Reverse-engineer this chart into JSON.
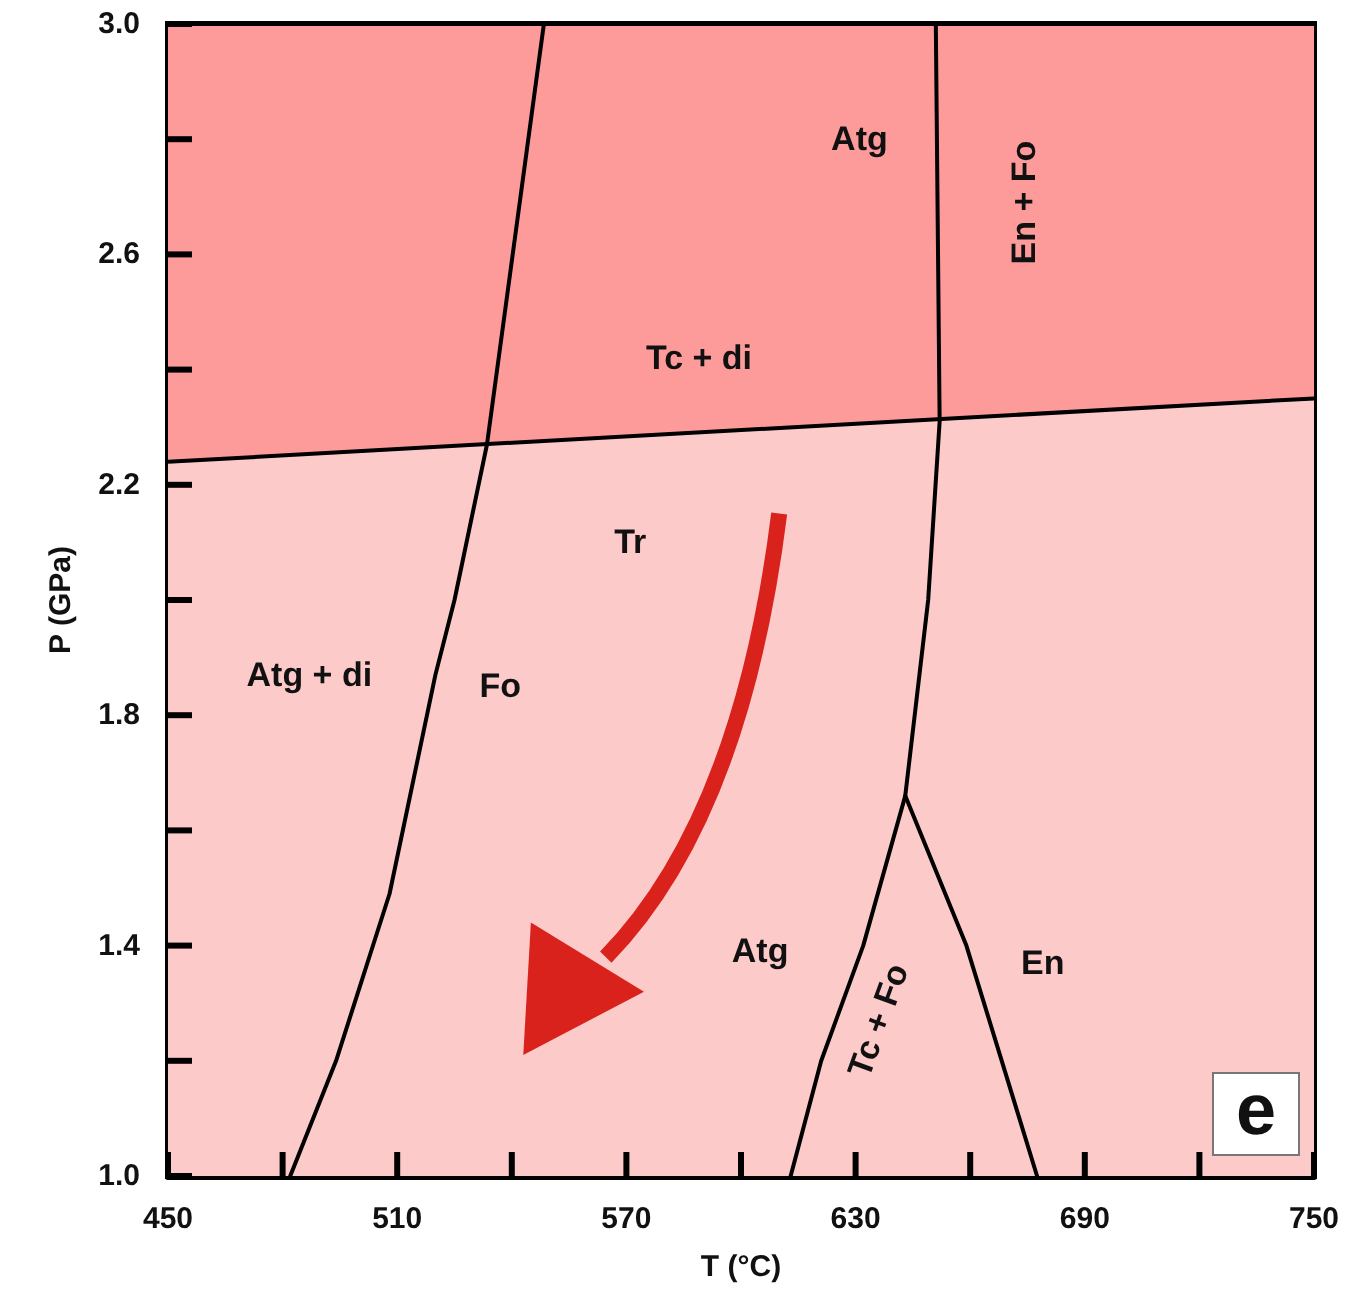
{
  "chart_data": {
    "type": "line",
    "xlabel": "T (°C)",
    "ylabel": "P (GPa)",
    "xlim": [
      450,
      750
    ],
    "ylim": [
      1.0,
      3.0
    ],
    "xticks": [
      450,
      {
        "value": 480,
        "label": null
      },
      510,
      {
        "value": 540,
        "label": null
      },
      570,
      {
        "value": 600,
        "label": null
      },
      630,
      {
        "value": 660,
        "label": null
      },
      690,
      {
        "value": 720,
        "label": null
      },
      750
    ],
    "yticks": [
      {
        "value": 1.0,
        "label": "1.0"
      },
      {
        "value": 1.2,
        "label": null
      },
      1.4,
      {
        "value": 1.6,
        "label": null
      },
      1.8,
      {
        "value": 2.0,
        "label": null
      },
      2.2,
      {
        "value": 2.4,
        "label": null
      },
      2.6,
      {
        "value": 2.8,
        "label": null
      },
      {
        "value": 3.0,
        "label": "3.0"
      }
    ],
    "series": [
      {
        "type": "area",
        "color": "#fd9b9b",
        "x": [
          450,
          750
        ],
        "values": [
          3.0,
          3.0
        ]
      },
      {
        "type": "area",
        "color": "#fdcaca",
        "x": [
          450,
          750
        ],
        "values": [
          2.24,
          2.35
        ]
      },
      {
        "color": "#000000",
        "x": [
          548.4,
          533.5,
          525,
          520,
          508,
          494,
          482
        ],
        "values": [
          3.0,
          2.27,
          2.0,
          1.87,
          1.49,
          1.2,
          1.0
        ]
      },
      {
        "color": "#000000",
        "x": [
          651,
          652,
          649,
          643,
          632,
          621,
          613
        ],
        "values": [
          3.0,
          2.31,
          2.0,
          1.66,
          1.4,
          1.2,
          1.0
        ]
      },
      {
        "color": "#000000",
        "x": [
          643,
          659,
          677.5
        ],
        "values": [
          1.66,
          1.4,
          1.0
        ]
      }
    ],
    "annotations": [
      "Atg",
      "Tc + di",
      "En + Fo",
      "Tr",
      "Atg + di",
      "Fo",
      "Atg",
      "Tc + Fo",
      "En",
      "e"
    ],
    "marker": "none",
    "line_style": "solid"
  }
}
